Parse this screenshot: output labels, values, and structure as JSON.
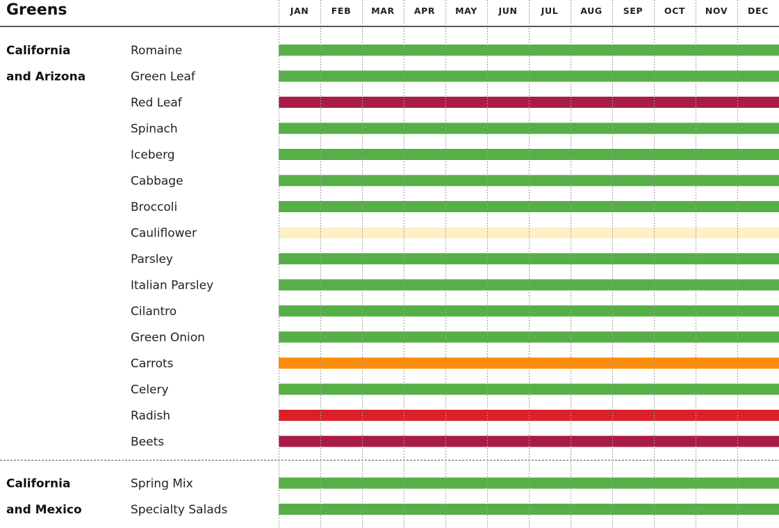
{
  "title": "Greens",
  "months": [
    "JAN",
    "FEB",
    "MAR",
    "APR",
    "MAY",
    "JUN",
    "JUL",
    "AUG",
    "SEP",
    "OCT",
    "NOV",
    "DEC"
  ],
  "colors": {
    "green": "#56b047",
    "maroon": "#aa1c48",
    "cream": "#fdf0c4",
    "orange": "#fd8c0a",
    "red": "#db2127",
    "grid": "#999999",
    "rule": "#222222"
  },
  "chart_data": {
    "type": "table",
    "title": "Greens",
    "months": [
      "JAN",
      "FEB",
      "MAR",
      "APR",
      "MAY",
      "JUN",
      "JUL",
      "AUG",
      "SEP",
      "OCT",
      "NOV",
      "DEC"
    ],
    "groups": [
      {
        "region_lines": [
          "California",
          "and Arizona"
        ],
        "items": [
          {
            "name": "Romaine",
            "color": "green",
            "months": [
              1,
              1,
              1,
              1,
              1,
              1,
              1,
              1,
              1,
              1,
              1,
              1
            ]
          },
          {
            "name": "Green Leaf",
            "color": "green",
            "months": [
              1,
              1,
              1,
              1,
              1,
              1,
              1,
              1,
              1,
              1,
              1,
              1
            ]
          },
          {
            "name": "Red Leaf",
            "color": "maroon",
            "months": [
              1,
              1,
              1,
              1,
              1,
              1,
              1,
              1,
              1,
              1,
              1,
              1
            ]
          },
          {
            "name": "Spinach",
            "color": "green",
            "months": [
              1,
              1,
              1,
              1,
              1,
              1,
              1,
              1,
              1,
              1,
              1,
              1
            ]
          },
          {
            "name": "Iceberg",
            "color": "green",
            "months": [
              1,
              1,
              1,
              1,
              1,
              1,
              1,
              1,
              1,
              1,
              1,
              1
            ]
          },
          {
            "name": "Cabbage",
            "color": "green",
            "months": [
              1,
              1,
              1,
              1,
              1,
              1,
              1,
              1,
              1,
              1,
              1,
              1
            ]
          },
          {
            "name": "Broccoli",
            "color": "green",
            "months": [
              1,
              1,
              1,
              1,
              1,
              1,
              1,
              1,
              1,
              1,
              1,
              1
            ]
          },
          {
            "name": "Cauliflower",
            "color": "cream",
            "months": [
              1,
              1,
              1,
              1,
              1,
              1,
              1,
              1,
              1,
              1,
              1,
              1
            ]
          },
          {
            "name": "Parsley",
            "color": "green",
            "months": [
              1,
              1,
              1,
              1,
              1,
              1,
              1,
              1,
              1,
              1,
              1,
              1
            ]
          },
          {
            "name": "Italian Parsley",
            "color": "green",
            "months": [
              1,
              1,
              1,
              1,
              1,
              1,
              1,
              1,
              1,
              1,
              1,
              1
            ]
          },
          {
            "name": "Cilantro",
            "color": "green",
            "months": [
              1,
              1,
              1,
              1,
              1,
              1,
              1,
              1,
              1,
              1,
              1,
              1
            ]
          },
          {
            "name": "Green Onion",
            "color": "green",
            "months": [
              1,
              1,
              1,
              1,
              1,
              1,
              1,
              1,
              1,
              1,
              1,
              1
            ]
          },
          {
            "name": "Carrots",
            "color": "orange",
            "months": [
              1,
              1,
              1,
              1,
              1,
              1,
              1,
              1,
              1,
              1,
              1,
              1
            ]
          },
          {
            "name": "Celery",
            "color": "green",
            "months": [
              1,
              1,
              1,
              1,
              1,
              1,
              1,
              1,
              1,
              1,
              1,
              1
            ]
          },
          {
            "name": "Radish",
            "color": "red",
            "months": [
              1,
              1,
              1,
              1,
              1,
              1,
              1,
              1,
              1,
              1,
              1,
              1
            ]
          },
          {
            "name": "Beets",
            "color": "maroon",
            "months": [
              1,
              1,
              1,
              1,
              1,
              1,
              1,
              1,
              1,
              1,
              1,
              1
            ]
          }
        ]
      },
      {
        "region_lines": [
          "California",
          "and Mexico"
        ],
        "items": [
          {
            "name": "Spring Mix",
            "color": "green",
            "months": [
              1,
              1,
              1,
              1,
              1,
              1,
              1,
              1,
              1,
              1,
              1,
              1
            ]
          },
          {
            "name": "Specialty Salads",
            "color": "green",
            "months": [
              1,
              1,
              1,
              1,
              1,
              1,
              1,
              1,
              1,
              1,
              1,
              1
            ]
          }
        ]
      }
    ]
  }
}
